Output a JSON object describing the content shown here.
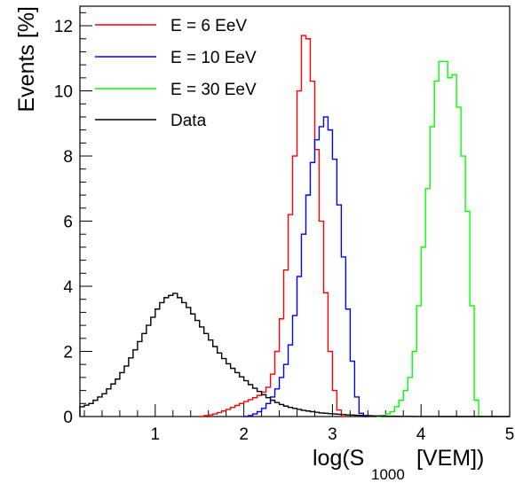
{
  "chart_data": {
    "type": "histogram",
    "xlabel": "log(S",
    "xlabel_sub": "1000",
    "xlabel_tail": " [VEM])",
    "ylabel": "Events [%]",
    "xlim": [
      0.15,
      5.0
    ],
    "ylim": [
      0,
      12.6
    ],
    "x_ticks": [
      "1",
      "2",
      "3",
      "4",
      "5"
    ],
    "y_ticks": [
      "0",
      "2",
      "4",
      "6",
      "8",
      "10",
      "12"
    ],
    "bin_width": 0.05,
    "legend": {
      "placement": "top-left"
    },
    "series": [
      {
        "name": "E = 6 EeV",
        "color": "#ff0000",
        "x_start": 1.5,
        "values": [
          0.0,
          0.03,
          0.05,
          0.08,
          0.12,
          0.17,
          0.22,
          0.28,
          0.34,
          0.4,
          0.46,
          0.52,
          0.58,
          0.65,
          0.75,
          0.9,
          1.3,
          2.0,
          3.0,
          4.5,
          6.2,
          8.0,
          10.0,
          11.7,
          11.6,
          10.3,
          8.2,
          6.0,
          3.8,
          2.0,
          0.8,
          0.2,
          0.0
        ]
      },
      {
        "name": "E = 10 EeV",
        "color": "#0000ff",
        "x_start": 2.0,
        "values": [
          0.0,
          0.03,
          0.08,
          0.15,
          0.25,
          0.4,
          0.6,
          0.85,
          1.2,
          1.6,
          2.2,
          3.1,
          4.3,
          5.6,
          6.8,
          7.8,
          8.5,
          8.9,
          9.2,
          8.8,
          7.9,
          6.5,
          4.9,
          3.3,
          1.7,
          0.6,
          0.1,
          0.0
        ]
      },
      {
        "name": "E = 30 EeV",
        "color": "#00ff00",
        "x_start": 3.5,
        "values": [
          0.0,
          0.03,
          0.08,
          0.15,
          0.3,
          0.5,
          0.8,
          1.2,
          2.0,
          3.4,
          5.2,
          7.0,
          8.9,
          10.3,
          10.9,
          10.9,
          10.4,
          10.5,
          9.5,
          8.0,
          6.3,
          3.4,
          0.5,
          0.0
        ]
      },
      {
        "name": "Data",
        "color": "#000000",
        "x_start": 0.15,
        "values": [
          0.3,
          0.35,
          0.4,
          0.5,
          0.6,
          0.7,
          0.85,
          1.0,
          1.15,
          1.35,
          1.55,
          1.8,
          2.05,
          2.3,
          2.55,
          2.8,
          3.05,
          3.3,
          3.5,
          3.65,
          3.72,
          3.78,
          3.65,
          3.5,
          3.35,
          3.15,
          2.95,
          2.75,
          2.55,
          2.35,
          2.15,
          1.95,
          1.78,
          1.62,
          1.48,
          1.35,
          1.22,
          1.1,
          0.98,
          0.87,
          0.77,
          0.67,
          0.58,
          0.5,
          0.43,
          0.37,
          0.32,
          0.28,
          0.25,
          0.22,
          0.19,
          0.17,
          0.15,
          0.13,
          0.11,
          0.1,
          0.09,
          0.08,
          0.07,
          0.06,
          0.05,
          0.045,
          0.04,
          0.035,
          0.03,
          0.025,
          0.02,
          0.018,
          0.015,
          0.012,
          0.01,
          0.008,
          0.006,
          0.005,
          0.004,
          0.003,
          0.002,
          0.002,
          0.001,
          0.001,
          0.001,
          0.0,
          0.0,
          0.0,
          0.0,
          0.0,
          0.0,
          0.0,
          0.0,
          0.0,
          0.0,
          0.0,
          0.0,
          0.0,
          0.0,
          0.0,
          0.0
        ]
      }
    ]
  }
}
